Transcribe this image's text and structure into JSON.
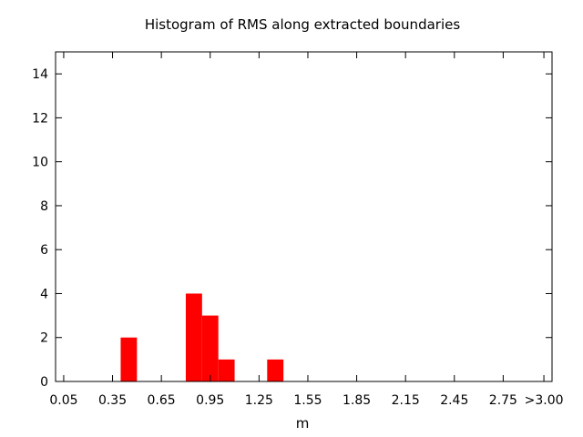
{
  "chart_data": {
    "type": "bar",
    "title": "Histogram of RMS along extracted boundaries",
    "xlabel": "m",
    "ylabel": "",
    "xlim": [
      0.0,
      3.05
    ],
    "ylim": [
      0,
      15
    ],
    "bin_width": 0.1,
    "x_ticks": [
      {
        "value": 0.05,
        "label": "0.05"
      },
      {
        "value": 0.35,
        "label": "0.35"
      },
      {
        "value": 0.65,
        "label": "0.65"
      },
      {
        "value": 0.95,
        "label": "0.95"
      },
      {
        "value": 1.25,
        "label": "1.25"
      },
      {
        "value": 1.55,
        "label": "1.55"
      },
      {
        "value": 1.85,
        "label": "1.85"
      },
      {
        "value": 2.15,
        "label": "2.15"
      },
      {
        "value": 2.45,
        "label": "2.45"
      },
      {
        "value": 2.75,
        "label": "2.75"
      },
      {
        "value": 3.0,
        "label": ">3.00"
      }
    ],
    "y_ticks": [
      {
        "value": 0,
        "label": "0"
      },
      {
        "value": 2,
        "label": "2"
      },
      {
        "value": 4,
        "label": "4"
      },
      {
        "value": 6,
        "label": "6"
      },
      {
        "value": 8,
        "label": "8"
      },
      {
        "value": 10,
        "label": "10"
      },
      {
        "value": 12,
        "label": "12"
      },
      {
        "value": 14,
        "label": "14"
      }
    ],
    "bars": [
      {
        "x": 0.45,
        "value": 2
      },
      {
        "x": 0.85,
        "value": 4
      },
      {
        "x": 0.95,
        "value": 3
      },
      {
        "x": 1.05,
        "value": 1
      },
      {
        "x": 1.35,
        "value": 1
      }
    ],
    "bar_color": "#ff0000",
    "grid": false,
    "legend": "none"
  }
}
